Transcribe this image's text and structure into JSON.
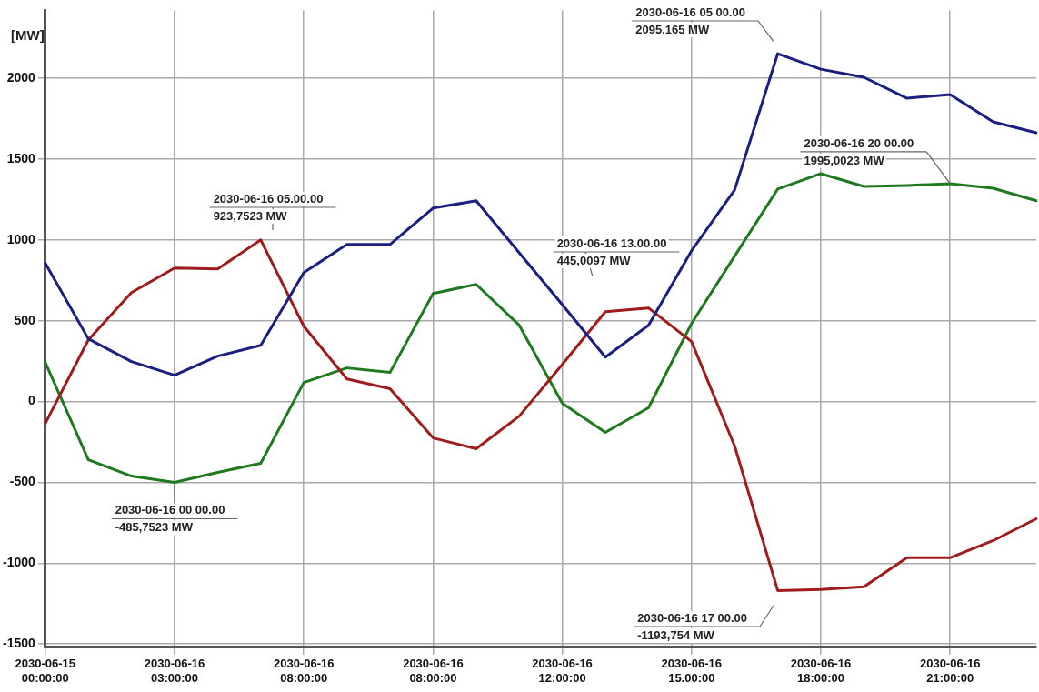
{
  "chart_data": {
    "type": "line",
    "ylabel": "[MW]",
    "ylim": [
      -1520,
      2420
    ],
    "categories": [
      "2030-06-15\n00:00:00",
      null,
      null,
      "2030-06-16\n03:00:00",
      null,
      null,
      "2030-06-16\n08:00:00",
      null,
      null,
      "2030-06-16\n08:00:00",
      null,
      null,
      "2030-06-16\n12:00:00",
      null,
      null,
      "2030-06-16\n15.00:00",
      null,
      null,
      "2030-06-16\n18:00:00",
      null,
      null,
      "2030-06-16\n21:00:00",
      null,
      null
    ],
    "yticks": [
      -1500,
      -1000,
      -500,
      0,
      500,
      1000,
      1500,
      2000
    ],
    "series": [
      {
        "color": "#1a1f80",
        "values": [
          855,
          388,
          247,
          163,
          281,
          348,
          798,
          972,
          972,
          1197,
          1242,
          920,
          600,
          275,
          472,
          933,
          1309,
          2152,
          2056,
          2006,
          1876,
          1899,
          1730,
          1663
        ]
      },
      {
        "color": "#a01c1c",
        "values": [
          -135,
          382,
          674,
          826,
          820,
          1000,
          466,
          140,
          79,
          -225,
          -292,
          -90,
          230,
          556,
          579,
          371,
          -275,
          -1169,
          -1163,
          -1146,
          -966,
          -966,
          -860,
          -725
        ]
      },
      {
        "color": "#1f7a1f",
        "values": [
          242,
          -360,
          -461,
          -500,
          -438,
          -382,
          118,
          208,
          180,
          669,
          725,
          472,
          -11,
          -191,
          -39,
          483,
          900,
          1315,
          1410,
          1331,
          1337,
          1348,
          1320,
          1242
        ]
      }
    ],
    "annotations": [
      "2030-06-16 05.00.00\n923,7523 MW",
      {
        "text": "2030-06-16 00 00.00\n-485,7523 MW",
        "x": "2030-06-16\n03:00:00",
        "y": -500
      },
      "2030-06-16 13.00.00\n445,0097 MW",
      "2030-06-16 05 00.00\n2095,165 MW",
      {
        "text": "2030-06-16 20 00.00\n1995,0023 MW",
        "x": "2030-06-16\n21:00:00",
        "y": 1348
      },
      "2030-06-16 17 00.00\n-1193,754 MW"
    ],
    "grid": true,
    "legend": false,
    "marker": "none",
    "line_style": "solid"
  }
}
